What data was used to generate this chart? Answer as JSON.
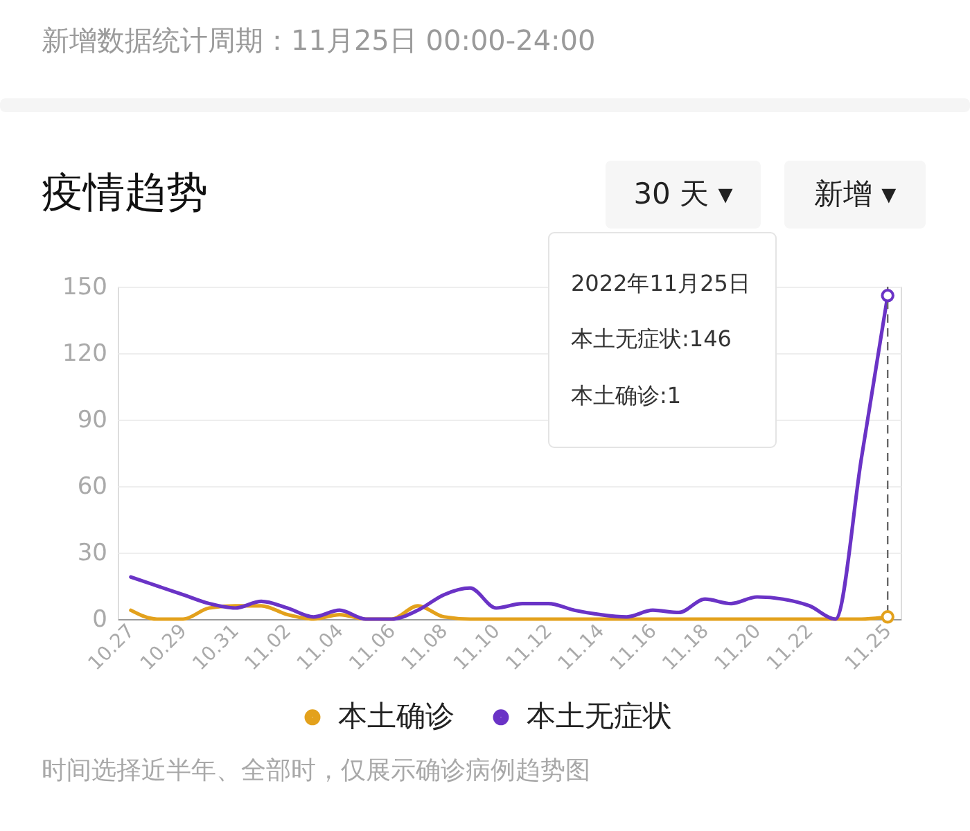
{
  "chart_data": {
    "type": "line",
    "title": "疫情趋势",
    "subtitle": "新增数据统计周期：11月25日 00:00-24:00",
    "categories": [
      "10.27",
      null,
      "10.29",
      null,
      "10.31",
      null,
      "11.02",
      null,
      "11.04",
      null,
      "11.06",
      null,
      "11.08",
      null,
      "11.10",
      null,
      "11.12",
      null,
      "11.14",
      null,
      "11.16",
      null,
      "11.18",
      null,
      "11.20",
      null,
      "11.22",
      null,
      null,
      "11.25"
    ],
    "series": [
      {
        "name": "本土确诊",
        "color": "#e3a11c",
        "values": [
          4,
          0,
          0,
          5,
          6,
          6,
          2,
          0,
          2,
          0,
          0,
          6,
          1,
          0,
          0,
          0,
          0,
          0,
          0,
          0,
          0,
          0,
          0,
          0,
          0,
          0,
          0,
          0,
          0,
          1
        ]
      },
      {
        "name": "本土无症状",
        "color": "#6a33c6",
        "values": [
          19,
          15,
          11,
          7,
          5,
          8,
          5,
          1,
          4,
          0,
          0,
          4,
          11,
          14,
          5,
          7,
          7,
          4,
          2,
          1,
          4,
          3,
          9,
          7,
          10,
          9,
          6,
          0,
          73,
          146
        ]
      }
    ],
    "ylim": [
      0,
      150
    ],
    "yticks": [
      0,
      30,
      60,
      90,
      120,
      150
    ],
    "grid": "y",
    "legend": "bottom",
    "ref_lines": [
      {
        "axis": "x",
        "value": "11.25",
        "color": "#666666",
        "line_style": "dashed"
      }
    ],
    "annotations": [
      "30 天 ▾",
      "新增 ▾",
      "2022年11月25日",
      "本土无症状:146",
      "本土确诊:1",
      "时间选择近半年、全部时，仅展示确诊病例趋势图"
    ]
  }
}
